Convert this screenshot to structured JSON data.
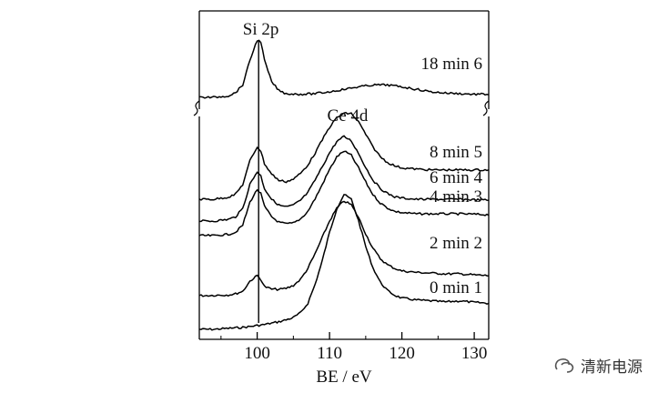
{
  "chart_data": {
    "type": "line",
    "title": "",
    "xlabel": "BE / eV",
    "ylabel": "",
    "xlim": [
      92,
      132
    ],
    "x_ticks": [
      100,
      110,
      120,
      130
    ],
    "peak_labels": [
      {
        "text": "Si 2p",
        "x": 100.5
      },
      {
        "text": "Ce 4d",
        "x": 112.5
      }
    ],
    "reference_line_x": 100.2,
    "series": [
      {
        "name": "0 min  1",
        "label": "0 min  1",
        "id": 1,
        "points": [
          [
            92,
            0.0
          ],
          [
            94,
            0.0
          ],
          [
            96,
            0.02
          ],
          [
            98,
            0.04
          ],
          [
            99,
            0.06
          ],
          [
            100,
            0.08
          ],
          [
            101,
            0.1
          ],
          [
            102,
            0.13
          ],
          [
            103,
            0.16
          ],
          [
            104,
            0.2
          ],
          [
            105,
            0.25
          ],
          [
            106,
            0.35
          ],
          [
            107,
            0.55
          ],
          [
            108,
            0.95
          ],
          [
            109,
            1.45
          ],
          [
            110,
            2.05
          ],
          [
            111,
            2.55
          ],
          [
            112,
            2.85
          ],
          [
            113,
            2.75
          ],
          [
            114,
            2.3
          ],
          [
            115,
            1.75
          ],
          [
            116,
            1.3
          ],
          [
            117,
            1.0
          ],
          [
            118,
            0.82
          ],
          [
            119,
            0.72
          ],
          [
            120,
            0.66
          ],
          [
            122,
            0.62
          ],
          [
            124,
            0.6
          ],
          [
            126,
            0.58
          ],
          [
            128,
            0.6
          ],
          [
            130,
            0.57
          ],
          [
            132,
            0.55
          ]
        ]
      },
      {
        "name": "2 min  2",
        "label": "2 min  2",
        "id": 2,
        "points": [
          [
            92,
            0.0
          ],
          [
            94,
            0.01
          ],
          [
            96,
            0.02
          ],
          [
            97,
            0.05
          ],
          [
            98,
            0.12
          ],
          [
            99,
            0.4
          ],
          [
            100,
            0.55
          ],
          [
            100.5,
            0.45
          ],
          [
            101,
            0.25
          ],
          [
            102,
            0.18
          ],
          [
            103,
            0.17
          ],
          [
            104,
            0.2
          ],
          [
            105,
            0.28
          ],
          [
            106,
            0.45
          ],
          [
            107,
            0.75
          ],
          [
            108,
            1.15
          ],
          [
            109,
            1.6
          ],
          [
            110,
            2.05
          ],
          [
            111,
            2.4
          ],
          [
            112,
            2.6
          ],
          [
            113,
            2.5
          ],
          [
            114,
            2.15
          ],
          [
            115,
            1.7
          ],
          [
            116,
            1.3
          ],
          [
            117,
            1.02
          ],
          [
            118,
            0.85
          ],
          [
            119,
            0.75
          ],
          [
            120,
            0.68
          ],
          [
            122,
            0.64
          ],
          [
            124,
            0.62
          ],
          [
            126,
            0.6
          ],
          [
            128,
            0.6
          ],
          [
            130,
            0.57
          ],
          [
            132,
            0.55
          ]
        ]
      },
      {
        "name": "4 min  3",
        "label": "4 min  3",
        "id": 3,
        "points": [
          [
            92,
            0.0
          ],
          [
            94,
            0.0
          ],
          [
            96,
            0.03
          ],
          [
            97,
            0.08
          ],
          [
            98,
            0.25
          ],
          [
            99,
            0.8
          ],
          [
            100,
            1.1
          ],
          [
            100.5,
            1.0
          ],
          [
            101,
            0.7
          ],
          [
            102,
            0.45
          ],
          [
            103,
            0.32
          ],
          [
            104,
            0.28
          ],
          [
            105,
            0.3
          ],
          [
            106,
            0.4
          ],
          [
            107,
            0.58
          ],
          [
            108,
            0.88
          ],
          [
            109,
            1.22
          ],
          [
            110,
            1.58
          ],
          [
            111,
            1.88
          ],
          [
            112,
            2.02
          ],
          [
            113,
            1.92
          ],
          [
            114,
            1.62
          ],
          [
            115,
            1.28
          ],
          [
            116,
            0.98
          ],
          [
            117,
            0.78
          ],
          [
            118,
            0.66
          ],
          [
            119,
            0.58
          ],
          [
            120,
            0.55
          ],
          [
            122,
            0.52
          ],
          [
            124,
            0.52
          ],
          [
            126,
            0.52
          ],
          [
            128,
            0.52
          ],
          [
            130,
            0.51
          ],
          [
            132,
            0.5
          ]
        ]
      },
      {
        "name": "6 min  4",
        "label": "6 min  4",
        "id": 4,
        "points": [
          [
            92,
            0.0
          ],
          [
            94,
            0.0
          ],
          [
            96,
            0.04
          ],
          [
            97,
            0.1
          ],
          [
            98,
            0.3
          ],
          [
            99,
            0.88
          ],
          [
            100,
            1.18
          ],
          [
            100.5,
            1.08
          ],
          [
            101,
            0.78
          ],
          [
            102,
            0.52
          ],
          [
            103,
            0.38
          ],
          [
            104,
            0.34
          ],
          [
            105,
            0.38
          ],
          [
            106,
            0.5
          ],
          [
            107,
            0.68
          ],
          [
            108,
            0.98
          ],
          [
            109,
            1.3
          ],
          [
            110,
            1.63
          ],
          [
            111,
            1.9
          ],
          [
            112,
            2.02
          ],
          [
            113,
            1.92
          ],
          [
            114,
            1.62
          ],
          [
            115,
            1.28
          ],
          [
            116,
            0.98
          ],
          [
            117,
            0.78
          ],
          [
            118,
            0.66
          ],
          [
            119,
            0.58
          ],
          [
            120,
            0.55
          ],
          [
            122,
            0.52
          ],
          [
            124,
            0.52
          ],
          [
            126,
            0.52
          ],
          [
            128,
            0.52
          ],
          [
            130,
            0.51
          ],
          [
            132,
            0.5
          ]
        ]
      },
      {
        "name": "8 min 5",
        "label": "8 min 5",
        "id": 5,
        "points": [
          [
            92,
            0.0
          ],
          [
            94,
            0.0
          ],
          [
            96,
            0.05
          ],
          [
            97,
            0.12
          ],
          [
            98,
            0.35
          ],
          [
            99,
            0.92
          ],
          [
            100,
            1.25
          ],
          [
            100.5,
            1.15
          ],
          [
            101,
            0.85
          ],
          [
            102,
            0.6
          ],
          [
            103,
            0.45
          ],
          [
            104,
            0.42
          ],
          [
            105,
            0.48
          ],
          [
            106,
            0.62
          ],
          [
            107,
            0.82
          ],
          [
            108,
            1.1
          ],
          [
            109,
            1.42
          ],
          [
            110,
            1.72
          ],
          [
            111,
            1.95
          ],
          [
            112,
            2.05
          ],
          [
            113,
            2.05
          ],
          [
            114,
            1.85
          ],
          [
            115,
            1.55
          ],
          [
            116,
            1.25
          ],
          [
            117,
            1.02
          ],
          [
            118,
            0.88
          ],
          [
            119,
            0.8
          ],
          [
            120,
            0.75
          ],
          [
            122,
            0.72
          ],
          [
            124,
            0.7
          ],
          [
            126,
            0.7
          ],
          [
            128,
            0.7
          ],
          [
            130,
            0.7
          ],
          [
            132,
            0.7
          ]
        ]
      },
      {
        "name": "18 min  6",
        "label": "18 min  6",
        "id": 6,
        "points": [
          [
            92,
            0.0
          ],
          [
            94,
            0.0
          ],
          [
            96,
            0.05
          ],
          [
            97,
            0.15
          ],
          [
            98,
            0.4
          ],
          [
            99,
            1.2
          ],
          [
            100,
            1.85
          ],
          [
            100.5,
            1.8
          ],
          [
            101,
            1.2
          ],
          [
            102,
            0.5
          ],
          [
            103,
            0.22
          ],
          [
            104,
            0.12
          ],
          [
            106,
            0.1
          ],
          [
            108,
            0.12
          ],
          [
            110,
            0.18
          ],
          [
            112,
            0.26
          ],
          [
            114,
            0.34
          ],
          [
            116,
            0.4
          ],
          [
            118,
            0.4
          ],
          [
            120,
            0.34
          ],
          [
            122,
            0.26
          ],
          [
            124,
            0.18
          ],
          [
            126,
            0.14
          ],
          [
            128,
            0.12
          ],
          [
            130,
            0.1
          ],
          [
            132,
            0.1
          ]
        ]
      }
    ],
    "grid": false,
    "legend": "inline labels to the right of each curve"
  },
  "watermark": {
    "text": "清新电源"
  }
}
